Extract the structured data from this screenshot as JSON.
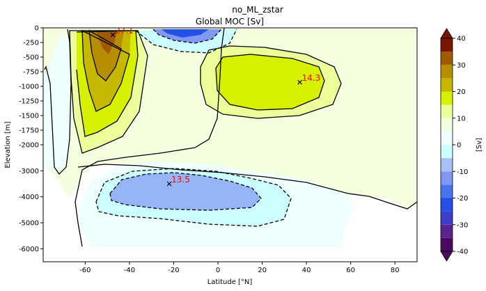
{
  "suptitle": "no_ML_zstar",
  "chart_data": {
    "type": "contour",
    "title": "Global MOC [Sv]",
    "xlabel": "Latitude [°N]",
    "ylabel": "Elevation [m]",
    "xlim": [
      -79,
      90
    ],
    "x_ticks": [
      -60,
      -40,
      -20,
      0,
      20,
      40,
      60,
      80
    ],
    "y_ticks_upper": [
      0,
      -250,
      -500,
      -750,
      -1000,
      -1250,
      -1500,
      -1750,
      -2000
    ],
    "y_ticks_lower": [
      -3000,
      -4000,
      -5000,
      -6000
    ],
    "colorbar": {
      "label": "[Sv]",
      "range": [
        -40,
        40
      ],
      "ticks": [
        40,
        30,
        20,
        10,
        0,
        -10,
        -20,
        -30,
        -40
      ],
      "levels": [
        -40,
        -35,
        -30,
        -25,
        -20,
        -15,
        -10,
        -5,
        0,
        5,
        10,
        15,
        20,
        25,
        30,
        35,
        40
      ],
      "colors": [
        "#4b0a5e",
        "#5c2391",
        "#3d3fcc",
        "#2350e8",
        "#4a73f0",
        "#7f99f2",
        "#a9c0f7",
        "#ccffff",
        "#eeffff",
        "#f4ffe0",
        "#ecff9a",
        "#d6f000",
        "#c6b800",
        "#b68e00",
        "#a05a00",
        "#7a1500"
      ]
    },
    "annotations": [
      {
        "label": "27.1",
        "lat": -47.5,
        "depth": -120
      },
      {
        "label": "14.3",
        "lat": 37,
        "depth": -930
      },
      {
        "label": "13.5",
        "lat": -22,
        "depth": -3500
      }
    ]
  }
}
